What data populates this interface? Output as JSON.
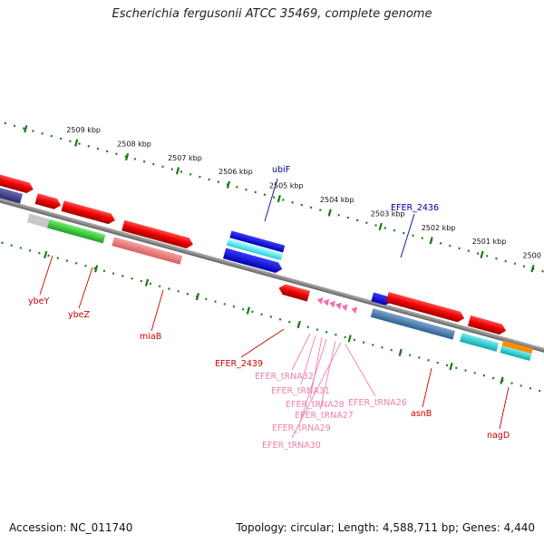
{
  "title": "Escherichia fergusonii ATCC 35469, complete genome",
  "footer": {
    "accession": "Accession: NC_011740",
    "topology": "Topology: circular; Length: 4,588,711 bp; Genes: 4,440"
  },
  "colors": {
    "backbone": "#8a8a8a",
    "tick": "#1b7a1b",
    "red_label": "#cc0000",
    "blue_label": "#000099",
    "pink_label": "#f080b0"
  },
  "ruler": [
    {
      "label": "2509 kbp"
    },
    {
      "label": "2508 kbp"
    },
    {
      "label": "2507 kbp"
    },
    {
      "label": "2506 kbp"
    },
    {
      "label": "2505 kbp"
    },
    {
      "label": "2504 kbp"
    },
    {
      "label": "2503 kbp"
    },
    {
      "label": "2502 kbp"
    },
    {
      "label": "2501 kbp"
    },
    {
      "label": "2500 kbp"
    }
  ],
  "genes": {
    "ubiF": "ubiF",
    "EFER_2436": "EFER_2436",
    "ybeY": "ybeY",
    "ybeZ": "ybeZ",
    "miaB": "miaB",
    "EFER_2439": "EFER_2439",
    "asnB": "asnB",
    "nagD": "nagD",
    "tRNA32": "EFER_tRNA32",
    "tRNA31": "EFER_tRNA31",
    "tRNA28": "EFER_tRNA28",
    "tRNA27": "EFER_tRNA27",
    "tRNA26": "EFER_tRNA26",
    "tRNA29": "EFER_tRNA29",
    "tRNA30": "EFER_tRNA30"
  }
}
